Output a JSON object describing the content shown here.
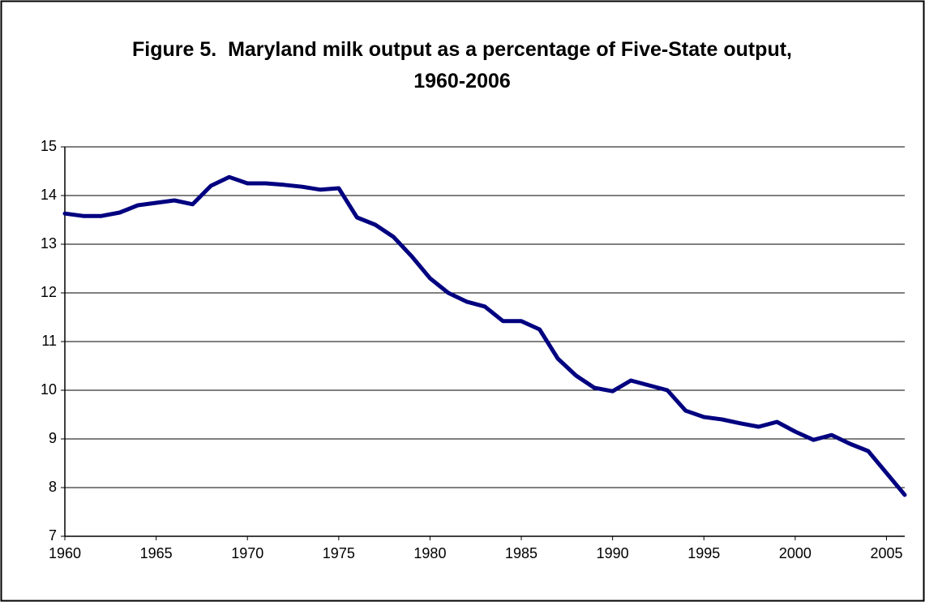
{
  "chart_data": {
    "type": "line",
    "title": "Figure 5.  Maryland milk output as a percentage of Five-State output, 1960-2006",
    "x": [
      1960,
      1961,
      1962,
      1963,
      1964,
      1965,
      1966,
      1967,
      1968,
      1969,
      1970,
      1971,
      1972,
      1973,
      1974,
      1975,
      1976,
      1977,
      1978,
      1979,
      1980,
      1981,
      1982,
      1983,
      1984,
      1985,
      1986,
      1987,
      1988,
      1989,
      1990,
      1991,
      1992,
      1993,
      1994,
      1995,
      1996,
      1997,
      1998,
      1999,
      2000,
      2001,
      2002,
      2003,
      2004,
      2005,
      2006
    ],
    "series": [
      {
        "color": "#000080",
        "values": [
          13.63,
          13.58,
          13.58,
          13.65,
          13.8,
          13.85,
          13.9,
          13.82,
          14.2,
          14.38,
          14.25,
          14.25,
          14.22,
          14.18,
          14.12,
          14.15,
          13.55,
          13.4,
          13.15,
          12.75,
          12.3,
          12.0,
          11.82,
          11.72,
          11.42,
          11.42,
          11.25,
          10.65,
          10.3,
          10.05,
          9.98,
          10.2,
          10.1,
          10.0,
          9.58,
          9.45,
          9.4,
          9.32,
          9.25,
          9.35,
          9.15,
          8.98,
          9.08,
          8.9,
          8.75,
          8.3,
          7.85
        ]
      }
    ],
    "xlim": [
      1960,
      2006
    ],
    "xticks": [
      1960,
      1965,
      1970,
      1975,
      1980,
      1985,
      1990,
      1995,
      2000,
      2005
    ],
    "ylim": [
      7,
      15
    ],
    "yticks": [
      7,
      8,
      9,
      10,
      11,
      12,
      13,
      14,
      15
    ],
    "grid": true
  }
}
